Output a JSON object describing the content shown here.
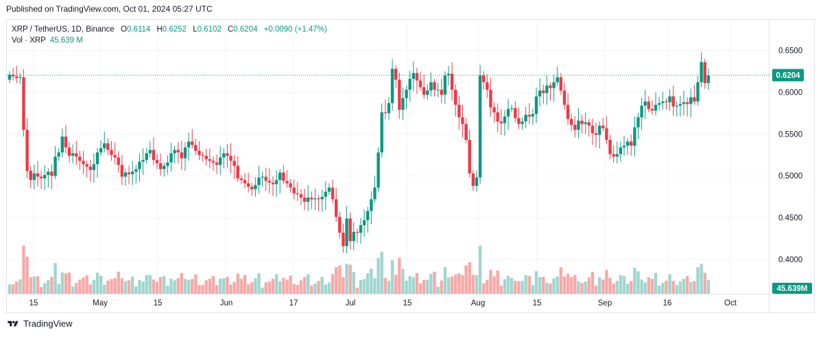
{
  "header": {
    "published": "Published on TradingView.com, Oct 01, 2024 05:27 UTC"
  },
  "legend": {
    "symbol": "XRP / TetherUS, 1D, Binance",
    "o_label": "O",
    "o_value": "0.6114",
    "h_label": "H",
    "h_value": "0.6252",
    "l_label": "L",
    "l_value": "0.6102",
    "c_label": "C",
    "c_value": "0.6204",
    "change": "+0.0090 (+1.47%)",
    "vol_label": "Vol · XRP",
    "vol_value": "45.639 M"
  },
  "footer": {
    "brand": "TradingView"
  },
  "colors": {
    "up": "#089981",
    "down": "#f23645",
    "up_vol": "#9fd6cf",
    "down_vol": "#f7a9a7",
    "grid": "#f0f3fa",
    "text": "#131722"
  },
  "chart_data": {
    "type": "candlestick",
    "symbol": "XRP / TetherUS",
    "interval": "1D",
    "exchange": "Binance",
    "x_tick_labels": [
      "15",
      "May",
      "15",
      "Jun",
      "17",
      "Jul",
      "15",
      "Aug",
      "15",
      "Sep",
      "16",
      "Oct"
    ],
    "y_tick_labels": [
      "0.6500",
      "0.6000",
      "0.5500",
      "0.5000",
      "0.4500",
      "0.4000"
    ],
    "ylim": [
      0.359,
      0.6865
    ],
    "last_price": "0.6204",
    "last_volume": "45.639M",
    "grid": true,
    "close": [
      0.621,
      0.619,
      0.617,
      0.618,
      0.555,
      0.506,
      0.495,
      0.503,
      0.499,
      0.497,
      0.501,
      0.505,
      0.5,
      0.523,
      0.528,
      0.547,
      0.534,
      0.524,
      0.527,
      0.523,
      0.518,
      0.514,
      0.511,
      0.507,
      0.514,
      0.528,
      0.533,
      0.539,
      0.531,
      0.525,
      0.522,
      0.513,
      0.499,
      0.504,
      0.502,
      0.505,
      0.508,
      0.517,
      0.519,
      0.527,
      0.531,
      0.519,
      0.515,
      0.508,
      0.512,
      0.516,
      0.527,
      0.531,
      0.528,
      0.521,
      0.534,
      0.541,
      0.537,
      0.53,
      0.525,
      0.524,
      0.52,
      0.518,
      0.516,
      0.513,
      0.522,
      0.527,
      0.524,
      0.518,
      0.512,
      0.497,
      0.495,
      0.491,
      0.487,
      0.484,
      0.489,
      0.498,
      0.499,
      0.494,
      0.492,
      0.49,
      0.495,
      0.504,
      0.494,
      0.491,
      0.486,
      0.479,
      0.478,
      0.474,
      0.469,
      0.474,
      0.472,
      0.473,
      0.472,
      0.475,
      0.481,
      0.486,
      0.472,
      0.451,
      0.432,
      0.416,
      0.449,
      0.422,
      0.433,
      0.432,
      0.441,
      0.447,
      0.458,
      0.472,
      0.486,
      0.528,
      0.576,
      0.575,
      0.587,
      0.628,
      0.615,
      0.579,
      0.593,
      0.603,
      0.616,
      0.623,
      0.614,
      0.606,
      0.597,
      0.602,
      0.612,
      0.603,
      0.603,
      0.597,
      0.62,
      0.622,
      0.603,
      0.585,
      0.57,
      0.562,
      0.543,
      0.503,
      0.488,
      0.498,
      0.62,
      0.612,
      0.603,
      0.582,
      0.576,
      0.565,
      0.563,
      0.571,
      0.58,
      0.581,
      0.569,
      0.562,
      0.565,
      0.573,
      0.571,
      0.574,
      0.595,
      0.602,
      0.599,
      0.608,
      0.605,
      0.612,
      0.618,
      0.602,
      0.585,
      0.568,
      0.561,
      0.555,
      0.566,
      0.562,
      0.564,
      0.56,
      0.551,
      0.549,
      0.56,
      0.557,
      0.543,
      0.526,
      0.523,
      0.526,
      0.534,
      0.536,
      0.541,
      0.536,
      0.558,
      0.57,
      0.584,
      0.589,
      0.58,
      0.578,
      0.585,
      0.587,
      0.589,
      0.588,
      0.595,
      0.583,
      0.584,
      0.586,
      0.588,
      0.586,
      0.594,
      0.589,
      0.612,
      0.636,
      0.611,
      0.62
    ]
  }
}
